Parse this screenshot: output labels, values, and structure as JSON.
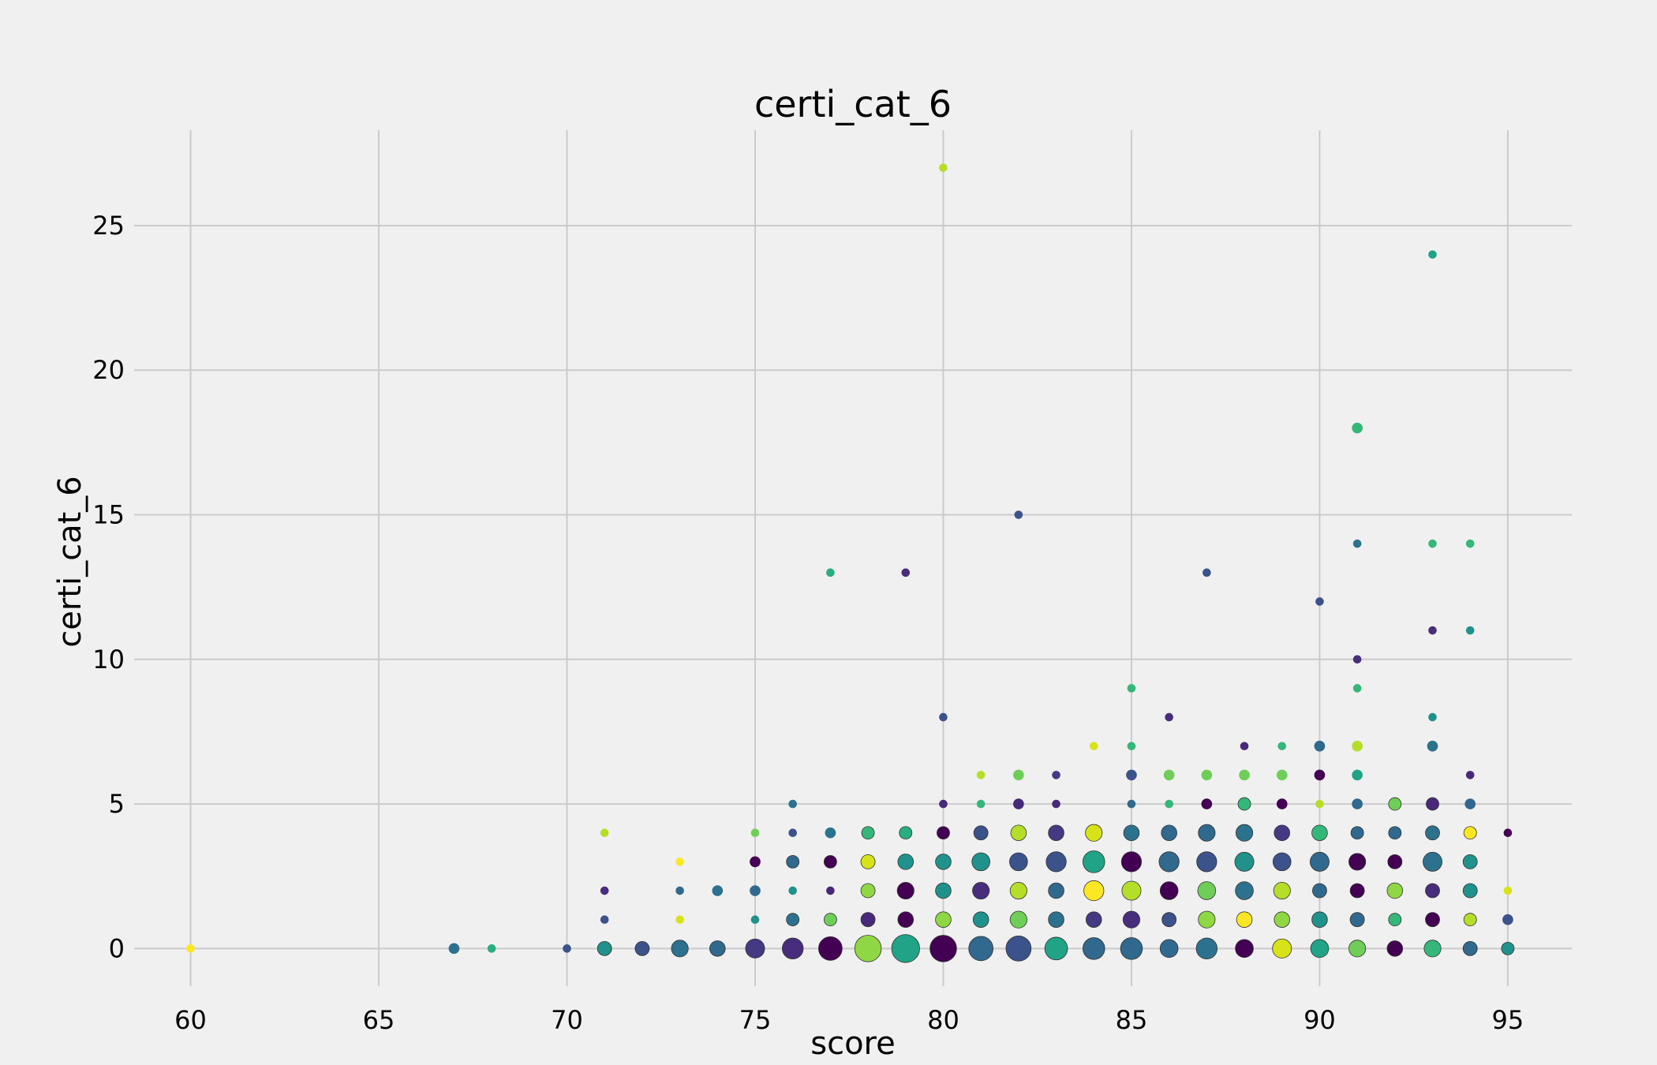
{
  "chart_data": {
    "type": "scatter",
    "title": "certi_cat_6",
    "xlabel": "score",
    "ylabel": "certi_cat_6",
    "xlim": [
      58.5,
      96.7
    ],
    "ylim": [
      -1.3,
      28.3
    ],
    "xticks": [
      60,
      65,
      70,
      75,
      80,
      85,
      90,
      95
    ],
    "yticks": [
      0,
      5,
      10,
      15,
      20,
      25
    ],
    "grid": true,
    "colormap": "viridis",
    "points": [
      {
        "x": 60,
        "y": 0,
        "s": 1,
        "c": "#fde725"
      },
      {
        "x": 67,
        "y": 0,
        "s": 2,
        "c": "#2c728e"
      },
      {
        "x": 68,
        "y": 0,
        "s": 1,
        "c": "#28ae80"
      },
      {
        "x": 70,
        "y": 0,
        "s": 1,
        "c": "#3b528b"
      },
      {
        "x": 71,
        "y": 0,
        "s": 4,
        "c": "#21918c"
      },
      {
        "x": 71,
        "y": 1,
        "s": 1,
        "c": "#3b528b"
      },
      {
        "x": 71,
        "y": 2,
        "s": 1,
        "c": "#472d7b"
      },
      {
        "x": 71,
        "y": 4,
        "s": 1,
        "c": "#b5de2b"
      },
      {
        "x": 72,
        "y": 0,
        "s": 4,
        "c": "#3b528b"
      },
      {
        "x": 73,
        "y": 0,
        "s": 6,
        "c": "#2c728e"
      },
      {
        "x": 73,
        "y": 1,
        "s": 1,
        "c": "#d8e219"
      },
      {
        "x": 73,
        "y": 2,
        "s": 1,
        "c": "#31688e"
      },
      {
        "x": 73,
        "y": 3,
        "s": 1,
        "c": "#fde725"
      },
      {
        "x": 74,
        "y": 0,
        "s": 5,
        "c": "#31688e"
      },
      {
        "x": 74,
        "y": 2,
        "s": 2,
        "c": "#2c728e"
      },
      {
        "x": 75,
        "y": 0,
        "s": 8,
        "c": "#443983"
      },
      {
        "x": 75,
        "y": 1,
        "s": 1,
        "c": "#21918c"
      },
      {
        "x": 75,
        "y": 2,
        "s": 2,
        "c": "#31688e"
      },
      {
        "x": 75,
        "y": 3,
        "s": 2,
        "c": "#440154"
      },
      {
        "x": 75,
        "y": 4,
        "s": 1,
        "c": "#6ece58"
      },
      {
        "x": 76,
        "y": 0,
        "s": 10,
        "c": "#472d7b"
      },
      {
        "x": 76,
        "y": 1,
        "s": 3,
        "c": "#2c728e"
      },
      {
        "x": 76,
        "y": 2,
        "s": 1,
        "c": "#21918c"
      },
      {
        "x": 76,
        "y": 3,
        "s": 3,
        "c": "#31688e"
      },
      {
        "x": 76,
        "y": 4,
        "s": 1,
        "c": "#3b528b"
      },
      {
        "x": 76,
        "y": 5,
        "s": 1,
        "c": "#2c728e"
      },
      {
        "x": 77,
        "y": 0,
        "s": 13,
        "c": "#440154"
      },
      {
        "x": 77,
        "y": 1,
        "s": 3,
        "c": "#6ece58"
      },
      {
        "x": 77,
        "y": 2,
        "s": 1,
        "c": "#482878"
      },
      {
        "x": 77,
        "y": 3,
        "s": 3,
        "c": "#440154"
      },
      {
        "x": 77,
        "y": 4,
        "s": 2,
        "c": "#2c728e"
      },
      {
        "x": 77,
        "y": 13,
        "s": 1,
        "c": "#28ae80"
      },
      {
        "x": 78,
        "y": 0,
        "s": 17,
        "c": "#8fd744"
      },
      {
        "x": 78,
        "y": 1,
        "s": 4,
        "c": "#482878"
      },
      {
        "x": 78,
        "y": 2,
        "s": 4,
        "c": "#8fd744"
      },
      {
        "x": 78,
        "y": 3,
        "s": 4,
        "c": "#d8e219"
      },
      {
        "x": 78,
        "y": 4,
        "s": 3,
        "c": "#35b779"
      },
      {
        "x": 79,
        "y": 0,
        "s": 19,
        "c": "#20a386"
      },
      {
        "x": 79,
        "y": 1,
        "s": 5,
        "c": "#440154"
      },
      {
        "x": 79,
        "y": 2,
        "s": 6,
        "c": "#440154"
      },
      {
        "x": 79,
        "y": 3,
        "s": 5,
        "c": "#21918c"
      },
      {
        "x": 79,
        "y": 4,
        "s": 3,
        "c": "#28ae80"
      },
      {
        "x": 79,
        "y": 13,
        "s": 1,
        "c": "#472d7b"
      },
      {
        "x": 80,
        "y": 0,
        "s": 17,
        "c": "#440154"
      },
      {
        "x": 80,
        "y": 1,
        "s": 5,
        "c": "#8fd744"
      },
      {
        "x": 80,
        "y": 2,
        "s": 5,
        "c": "#21918c"
      },
      {
        "x": 80,
        "y": 3,
        "s": 5,
        "c": "#21918c"
      },
      {
        "x": 80,
        "y": 4,
        "s": 3,
        "c": "#440154"
      },
      {
        "x": 80,
        "y": 5,
        "s": 1,
        "c": "#482878"
      },
      {
        "x": 80,
        "y": 8,
        "s": 1,
        "c": "#3b528b"
      },
      {
        "x": 80,
        "y": 27,
        "s": 1,
        "c": "#b5de2b"
      },
      {
        "x": 81,
        "y": 0,
        "s": 14,
        "c": "#31688e"
      },
      {
        "x": 81,
        "y": 1,
        "s": 5,
        "c": "#21918c"
      },
      {
        "x": 81,
        "y": 2,
        "s": 6,
        "c": "#472d7b"
      },
      {
        "x": 81,
        "y": 3,
        "s": 7,
        "c": "#21918c"
      },
      {
        "x": 81,
        "y": 4,
        "s": 4,
        "c": "#3b528b"
      },
      {
        "x": 81,
        "y": 5,
        "s": 1,
        "c": "#35b779"
      },
      {
        "x": 81,
        "y": 6,
        "s": 1,
        "c": "#b5de2b"
      },
      {
        "x": 82,
        "y": 0,
        "s": 15,
        "c": "#3b528b"
      },
      {
        "x": 82,
        "y": 1,
        "s": 6,
        "c": "#6ece58"
      },
      {
        "x": 82,
        "y": 2,
        "s": 6,
        "c": "#b5de2b"
      },
      {
        "x": 82,
        "y": 3,
        "s": 7,
        "c": "#3b528b"
      },
      {
        "x": 82,
        "y": 4,
        "s": 5,
        "c": "#b5de2b"
      },
      {
        "x": 82,
        "y": 5,
        "s": 2,
        "c": "#482878"
      },
      {
        "x": 82,
        "y": 6,
        "s": 2,
        "c": "#6ece58"
      },
      {
        "x": 82,
        "y": 15,
        "s": 1,
        "c": "#3b528b"
      },
      {
        "x": 83,
        "y": 0,
        "s": 12,
        "c": "#20a386"
      },
      {
        "x": 83,
        "y": 1,
        "s": 5,
        "c": "#2c728e"
      },
      {
        "x": 83,
        "y": 2,
        "s": 5,
        "c": "#31688e"
      },
      {
        "x": 83,
        "y": 3,
        "s": 9,
        "c": "#3b528b"
      },
      {
        "x": 83,
        "y": 4,
        "s": 5,
        "c": "#443983"
      },
      {
        "x": 83,
        "y": 5,
        "s": 1,
        "c": "#482878"
      },
      {
        "x": 83,
        "y": 6,
        "s": 1,
        "c": "#443983"
      },
      {
        "x": 84,
        "y": 0,
        "s": 11,
        "c": "#31688e"
      },
      {
        "x": 84,
        "y": 1,
        "s": 5,
        "c": "#443983"
      },
      {
        "x": 84,
        "y": 2,
        "s": 9,
        "c": "#fde725"
      },
      {
        "x": 84,
        "y": 3,
        "s": 11,
        "c": "#20a386"
      },
      {
        "x": 84,
        "y": 4,
        "s": 6,
        "c": "#d8e219"
      },
      {
        "x": 84,
        "y": 7,
        "s": 1,
        "c": "#d8e219"
      },
      {
        "x": 85,
        "y": 0,
        "s": 11,
        "c": "#31688e"
      },
      {
        "x": 85,
        "y": 1,
        "s": 6,
        "c": "#472d7b"
      },
      {
        "x": 85,
        "y": 2,
        "s": 8,
        "c": "#b5de2b"
      },
      {
        "x": 85,
        "y": 3,
        "s": 9,
        "c": "#440154"
      },
      {
        "x": 85,
        "y": 4,
        "s": 5,
        "c": "#2c728e"
      },
      {
        "x": 85,
        "y": 5,
        "s": 1,
        "c": "#31688e"
      },
      {
        "x": 85,
        "y": 6,
        "s": 2,
        "c": "#3b528b"
      },
      {
        "x": 85,
        "y": 7,
        "s": 1,
        "c": "#35b779"
      },
      {
        "x": 85,
        "y": 9,
        "s": 1,
        "c": "#35b779"
      },
      {
        "x": 86,
        "y": 0,
        "s": 7,
        "c": "#31688e"
      },
      {
        "x": 86,
        "y": 1,
        "s": 4,
        "c": "#3b528b"
      },
      {
        "x": 86,
        "y": 2,
        "s": 7,
        "c": "#440154"
      },
      {
        "x": 86,
        "y": 3,
        "s": 9,
        "c": "#31688e"
      },
      {
        "x": 86,
        "y": 4,
        "s": 5,
        "c": "#31688e"
      },
      {
        "x": 86,
        "y": 5,
        "s": 1,
        "c": "#35b779"
      },
      {
        "x": 86,
        "y": 6,
        "s": 2,
        "c": "#6ece58"
      },
      {
        "x": 86,
        "y": 8,
        "s": 1,
        "c": "#472d7b"
      },
      {
        "x": 87,
        "y": 0,
        "s": 10,
        "c": "#2c728e"
      },
      {
        "x": 87,
        "y": 1,
        "s": 6,
        "c": "#8fd744"
      },
      {
        "x": 87,
        "y": 2,
        "s": 7,
        "c": "#6ece58"
      },
      {
        "x": 87,
        "y": 3,
        "s": 9,
        "c": "#3b528b"
      },
      {
        "x": 87,
        "y": 4,
        "s": 6,
        "c": "#31688e"
      },
      {
        "x": 87,
        "y": 5,
        "s": 2,
        "c": "#440154"
      },
      {
        "x": 87,
        "y": 6,
        "s": 2,
        "c": "#6ece58"
      },
      {
        "x": 87,
        "y": 13,
        "s": 1,
        "c": "#3b528b"
      },
      {
        "x": 88,
        "y": 0,
        "s": 7,
        "c": "#440154"
      },
      {
        "x": 88,
        "y": 1,
        "s": 5,
        "c": "#fde725"
      },
      {
        "x": 88,
        "y": 2,
        "s": 7,
        "c": "#2c728e"
      },
      {
        "x": 88,
        "y": 3,
        "s": 8,
        "c": "#21918c"
      },
      {
        "x": 88,
        "y": 4,
        "s": 6,
        "c": "#2c728e"
      },
      {
        "x": 88,
        "y": 5,
        "s": 3,
        "c": "#35b779"
      },
      {
        "x": 88,
        "y": 6,
        "s": 2,
        "c": "#6ece58"
      },
      {
        "x": 88,
        "y": 7,
        "s": 1,
        "c": "#482878"
      },
      {
        "x": 89,
        "y": 0,
        "s": 8,
        "c": "#d8e219"
      },
      {
        "x": 89,
        "y": 1,
        "s": 5,
        "c": "#8fd744"
      },
      {
        "x": 89,
        "y": 2,
        "s": 6,
        "c": "#b5de2b"
      },
      {
        "x": 89,
        "y": 3,
        "s": 7,
        "c": "#3b528b"
      },
      {
        "x": 89,
        "y": 4,
        "s": 5,
        "c": "#443983"
      },
      {
        "x": 89,
        "y": 5,
        "s": 2,
        "c": "#440154"
      },
      {
        "x": 89,
        "y": 6,
        "s": 2,
        "c": "#6ece58"
      },
      {
        "x": 89,
        "y": 7,
        "s": 1,
        "c": "#35b779"
      },
      {
        "x": 90,
        "y": 0,
        "s": 7,
        "c": "#20a386"
      },
      {
        "x": 90,
        "y": 1,
        "s": 5,
        "c": "#21918c"
      },
      {
        "x": 90,
        "y": 2,
        "s": 4,
        "c": "#31688e"
      },
      {
        "x": 90,
        "y": 3,
        "s": 8,
        "c": "#31688e"
      },
      {
        "x": 90,
        "y": 4,
        "s": 5,
        "c": "#35b779"
      },
      {
        "x": 90,
        "y": 5,
        "s": 1,
        "c": "#b5de2b"
      },
      {
        "x": 90,
        "y": 6,
        "s": 2,
        "c": "#440154"
      },
      {
        "x": 90,
        "y": 7,
        "s": 2,
        "c": "#31688e"
      },
      {
        "x": 90,
        "y": 12,
        "s": 1,
        "c": "#3b528b"
      },
      {
        "x": 91,
        "y": 0,
        "s": 6,
        "c": "#6ece58"
      },
      {
        "x": 91,
        "y": 1,
        "s": 4,
        "c": "#31688e"
      },
      {
        "x": 91,
        "y": 2,
        "s": 4,
        "c": "#440154"
      },
      {
        "x": 91,
        "y": 3,
        "s": 6,
        "c": "#440154"
      },
      {
        "x": 91,
        "y": 4,
        "s": 3,
        "c": "#31688e"
      },
      {
        "x": 91,
        "y": 5,
        "s": 2,
        "c": "#31688e"
      },
      {
        "x": 91,
        "y": 6,
        "s": 2,
        "c": "#20a386"
      },
      {
        "x": 91,
        "y": 7,
        "s": 2,
        "c": "#b5de2b"
      },
      {
        "x": 91,
        "y": 9,
        "s": 1,
        "c": "#35b779"
      },
      {
        "x": 91,
        "y": 10,
        "s": 1,
        "c": "#472d7b"
      },
      {
        "x": 91,
        "y": 14,
        "s": 1,
        "c": "#2c728e"
      },
      {
        "x": 91,
        "y": 18,
        "s": 2,
        "c": "#35b779"
      },
      {
        "x": 92,
        "y": 0,
        "s": 5,
        "c": "#440154"
      },
      {
        "x": 92,
        "y": 1,
        "s": 3,
        "c": "#35b779"
      },
      {
        "x": 92,
        "y": 2,
        "s": 5,
        "c": "#8fd744"
      },
      {
        "x": 92,
        "y": 3,
        "s": 4,
        "c": "#440154"
      },
      {
        "x": 92,
        "y": 4,
        "s": 3,
        "c": "#31688e"
      },
      {
        "x": 92,
        "y": 5,
        "s": 3,
        "c": "#6ece58"
      },
      {
        "x": 93,
        "y": 0,
        "s": 6,
        "c": "#35b779"
      },
      {
        "x": 93,
        "y": 1,
        "s": 4,
        "c": "#440154"
      },
      {
        "x": 93,
        "y": 2,
        "s": 4,
        "c": "#472d7b"
      },
      {
        "x": 93,
        "y": 3,
        "s": 8,
        "c": "#2c728e"
      },
      {
        "x": 93,
        "y": 4,
        "s": 4,
        "c": "#2c728e"
      },
      {
        "x": 93,
        "y": 5,
        "s": 3,
        "c": "#482878"
      },
      {
        "x": 93,
        "y": 7,
        "s": 2,
        "c": "#2c728e"
      },
      {
        "x": 93,
        "y": 8,
        "s": 1,
        "c": "#21918c"
      },
      {
        "x": 93,
        "y": 11,
        "s": 1,
        "c": "#472d7b"
      },
      {
        "x": 93,
        "y": 14,
        "s": 1,
        "c": "#35b779"
      },
      {
        "x": 93,
        "y": 24,
        "s": 1,
        "c": "#20a386"
      },
      {
        "x": 94,
        "y": 0,
        "s": 4,
        "c": "#31688e"
      },
      {
        "x": 94,
        "y": 1,
        "s": 3,
        "c": "#b5de2b"
      },
      {
        "x": 94,
        "y": 2,
        "s": 4,
        "c": "#21918c"
      },
      {
        "x": 94,
        "y": 3,
        "s": 4,
        "c": "#21918c"
      },
      {
        "x": 94,
        "y": 4,
        "s": 3,
        "c": "#fde725"
      },
      {
        "x": 94,
        "y": 5,
        "s": 2,
        "c": "#31688e"
      },
      {
        "x": 94,
        "y": 6,
        "s": 1,
        "c": "#482878"
      },
      {
        "x": 94,
        "y": 11,
        "s": 1,
        "c": "#21918c"
      },
      {
        "x": 94,
        "y": 14,
        "s": 1,
        "c": "#35b779"
      },
      {
        "x": 95,
        "y": 0,
        "s": 3,
        "c": "#21918c"
      },
      {
        "x": 95,
        "y": 1,
        "s": 2,
        "c": "#3b528b"
      },
      {
        "x": 95,
        "y": 2,
        "s": 1,
        "c": "#d8e219"
      },
      {
        "x": 95,
        "y": 4,
        "s": 1,
        "c": "#440154"
      }
    ]
  }
}
